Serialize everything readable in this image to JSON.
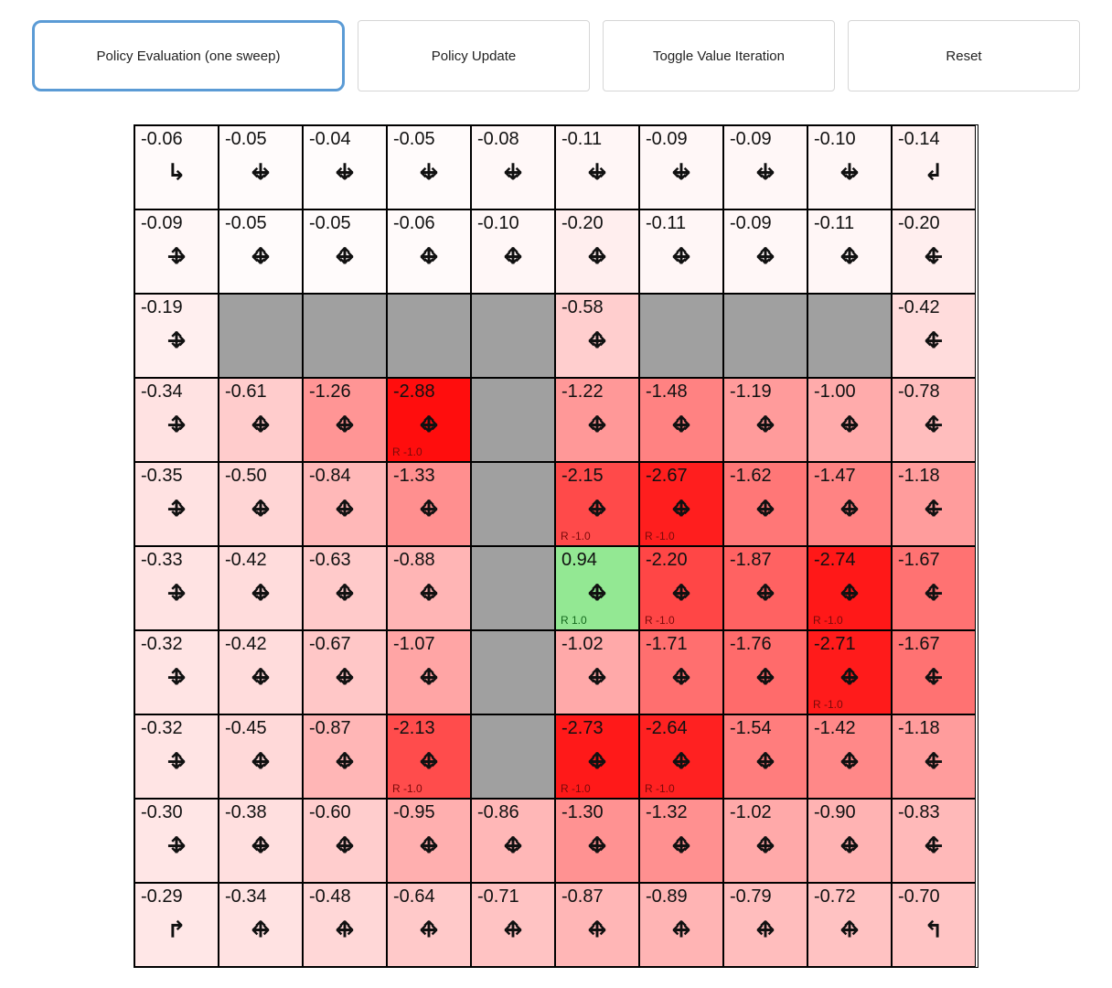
{
  "toolbar": {
    "buttons": [
      {
        "label": "Policy Evaluation (one sweep)",
        "active": true
      },
      {
        "label": "Policy Update",
        "active": false
      },
      {
        "label": "Toggle Value Iteration",
        "active": false
      },
      {
        "label": "Reset",
        "active": false
      }
    ]
  },
  "colors": {
    "accent": "#5b9bd5",
    "wall": "#a0a0a0",
    "cell_border": "#000000",
    "negative_rgb": "255,0,0",
    "positive_rgb": "0,200,0",
    "reward_negative_text": "#7a0a0a",
    "reward_positive_text": "#14691d"
  },
  "arrow_glyphs": {
    "U": "↑",
    "D": "↓",
    "L": "←",
    "R": "→",
    "TDR": "↳",
    "TDL": "↲",
    "TUR": "↱",
    "TUL": "↰"
  },
  "grid": {
    "rows": [
      [
        {
          "value": "-0.06",
          "arrows": [
            "TDR"
          ]
        },
        {
          "value": "-0.05",
          "arrows": [
            "D",
            "L",
            "R"
          ]
        },
        {
          "value": "-0.04",
          "arrows": [
            "D",
            "L",
            "R"
          ]
        },
        {
          "value": "-0.05",
          "arrows": [
            "D",
            "L",
            "R"
          ]
        },
        {
          "value": "-0.08",
          "arrows": [
            "D",
            "L",
            "R"
          ]
        },
        {
          "value": "-0.11",
          "arrows": [
            "D",
            "L",
            "R"
          ]
        },
        {
          "value": "-0.09",
          "arrows": [
            "D",
            "L",
            "R"
          ]
        },
        {
          "value": "-0.09",
          "arrows": [
            "D",
            "L",
            "R"
          ]
        },
        {
          "value": "-0.10",
          "arrows": [
            "D",
            "L",
            "R"
          ]
        },
        {
          "value": "-0.14",
          "arrows": [
            "TDL"
          ]
        }
      ],
      [
        {
          "value": "-0.09",
          "arrows": [
            "U",
            "D",
            "R"
          ]
        },
        {
          "value": "-0.05",
          "arrows": [
            "U",
            "D",
            "L",
            "R"
          ]
        },
        {
          "value": "-0.05",
          "arrows": [
            "U",
            "D",
            "L",
            "R"
          ]
        },
        {
          "value": "-0.06",
          "arrows": [
            "U",
            "D",
            "L",
            "R"
          ]
        },
        {
          "value": "-0.10",
          "arrows": [
            "U",
            "D",
            "L",
            "R"
          ]
        },
        {
          "value": "-0.20",
          "arrows": [
            "U",
            "D",
            "L",
            "R"
          ]
        },
        {
          "value": "-0.11",
          "arrows": [
            "U",
            "D",
            "L",
            "R"
          ]
        },
        {
          "value": "-0.09",
          "arrows": [
            "U",
            "D",
            "L",
            "R"
          ]
        },
        {
          "value": "-0.11",
          "arrows": [
            "U",
            "D",
            "L",
            "R"
          ]
        },
        {
          "value": "-0.20",
          "arrows": [
            "U",
            "D",
            "L"
          ]
        }
      ],
      [
        {
          "value": "-0.19",
          "arrows": [
            "U",
            "D",
            "R"
          ]
        },
        {
          "wall": true
        },
        {
          "wall": true
        },
        {
          "wall": true
        },
        {
          "wall": true
        },
        {
          "value": "-0.58",
          "arrows": [
            "U",
            "D",
            "L",
            "R"
          ]
        },
        {
          "wall": true
        },
        {
          "wall": true
        },
        {
          "wall": true
        },
        {
          "value": "-0.42",
          "arrows": [
            "U",
            "D",
            "L"
          ]
        }
      ],
      [
        {
          "value": "-0.34",
          "arrows": [
            "U",
            "D",
            "R"
          ]
        },
        {
          "value": "-0.61",
          "arrows": [
            "U",
            "D",
            "L",
            "R"
          ]
        },
        {
          "value": "-1.26",
          "arrows": [
            "U",
            "D",
            "L",
            "R"
          ]
        },
        {
          "value": "-2.88",
          "arrows": [
            "U",
            "D",
            "L",
            "R"
          ],
          "reward_label": "R -1.0"
        },
        {
          "wall": true
        },
        {
          "value": "-1.22",
          "arrows": [
            "U",
            "D",
            "L",
            "R"
          ]
        },
        {
          "value": "-1.48",
          "arrows": [
            "U",
            "D",
            "L",
            "R"
          ]
        },
        {
          "value": "-1.19",
          "arrows": [
            "U",
            "D",
            "L",
            "R"
          ]
        },
        {
          "value": "-1.00",
          "arrows": [
            "U",
            "D",
            "L",
            "R"
          ]
        },
        {
          "value": "-0.78",
          "arrows": [
            "U",
            "D",
            "L"
          ]
        }
      ],
      [
        {
          "value": "-0.35",
          "arrows": [
            "U",
            "D",
            "R"
          ]
        },
        {
          "value": "-0.50",
          "arrows": [
            "U",
            "D",
            "L",
            "R"
          ]
        },
        {
          "value": "-0.84",
          "arrows": [
            "U",
            "D",
            "L",
            "R"
          ]
        },
        {
          "value": "-1.33",
          "arrows": [
            "U",
            "D",
            "L",
            "R"
          ]
        },
        {
          "wall": true
        },
        {
          "value": "-2.15",
          "arrows": [
            "U",
            "D",
            "L",
            "R"
          ],
          "reward_label": "R -1.0"
        },
        {
          "value": "-2.67",
          "arrows": [
            "U",
            "D",
            "L",
            "R"
          ],
          "reward_label": "R -1.0"
        },
        {
          "value": "-1.62",
          "arrows": [
            "U",
            "D",
            "L",
            "R"
          ]
        },
        {
          "value": "-1.47",
          "arrows": [
            "U",
            "D",
            "L",
            "R"
          ]
        },
        {
          "value": "-1.18",
          "arrows": [
            "U",
            "D",
            "L"
          ]
        }
      ],
      [
        {
          "value": "-0.33",
          "arrows": [
            "U",
            "D",
            "R"
          ]
        },
        {
          "value": "-0.42",
          "arrows": [
            "U",
            "D",
            "L",
            "R"
          ]
        },
        {
          "value": "-0.63",
          "arrows": [
            "U",
            "D",
            "L",
            "R"
          ]
        },
        {
          "value": "-0.88",
          "arrows": [
            "U",
            "D",
            "L",
            "R"
          ]
        },
        {
          "wall": true
        },
        {
          "value": "0.94",
          "arrows": [
            "U",
            "D",
            "L",
            "R"
          ],
          "reward_label": "R 1.0"
        },
        {
          "value": "-2.20",
          "arrows": [
            "U",
            "D",
            "L",
            "R"
          ],
          "reward_label": "R -1.0"
        },
        {
          "value": "-1.87",
          "arrows": [
            "U",
            "D",
            "L",
            "R"
          ]
        },
        {
          "value": "-2.74",
          "arrows": [
            "U",
            "D",
            "L",
            "R"
          ],
          "reward_label": "R -1.0"
        },
        {
          "value": "-1.67",
          "arrows": [
            "U",
            "D",
            "L"
          ]
        }
      ],
      [
        {
          "value": "-0.32",
          "arrows": [
            "U",
            "D",
            "R"
          ]
        },
        {
          "value": "-0.42",
          "arrows": [
            "U",
            "D",
            "L",
            "R"
          ]
        },
        {
          "value": "-0.67",
          "arrows": [
            "U",
            "D",
            "L",
            "R"
          ]
        },
        {
          "value": "-1.07",
          "arrows": [
            "U",
            "D",
            "L",
            "R"
          ]
        },
        {
          "wall": true
        },
        {
          "value": "-1.02",
          "arrows": [
            "U",
            "D",
            "L",
            "R"
          ]
        },
        {
          "value": "-1.71",
          "arrows": [
            "U",
            "D",
            "L",
            "R"
          ]
        },
        {
          "value": "-1.76",
          "arrows": [
            "U",
            "D",
            "L",
            "R"
          ]
        },
        {
          "value": "-2.71",
          "arrows": [
            "U",
            "D",
            "L",
            "R"
          ],
          "reward_label": "R -1.0"
        },
        {
          "value": "-1.67",
          "arrows": [
            "U",
            "D",
            "L"
          ]
        }
      ],
      [
        {
          "value": "-0.32",
          "arrows": [
            "U",
            "D",
            "R"
          ]
        },
        {
          "value": "-0.45",
          "arrows": [
            "U",
            "D",
            "L",
            "R"
          ]
        },
        {
          "value": "-0.87",
          "arrows": [
            "U",
            "D",
            "L",
            "R"
          ]
        },
        {
          "value": "-2.13",
          "arrows": [
            "U",
            "D",
            "L",
            "R"
          ],
          "reward_label": "R -1.0"
        },
        {
          "wall": true
        },
        {
          "value": "-2.73",
          "arrows": [
            "U",
            "D",
            "L",
            "R"
          ],
          "reward_label": "R -1.0"
        },
        {
          "value": "-2.64",
          "arrows": [
            "U",
            "D",
            "L",
            "R"
          ],
          "reward_label": "R -1.0"
        },
        {
          "value": "-1.54",
          "arrows": [
            "U",
            "D",
            "L",
            "R"
          ]
        },
        {
          "value": "-1.42",
          "arrows": [
            "U",
            "D",
            "L",
            "R"
          ]
        },
        {
          "value": "-1.18",
          "arrows": [
            "U",
            "D",
            "L"
          ]
        }
      ],
      [
        {
          "value": "-0.30",
          "arrows": [
            "U",
            "D",
            "R"
          ]
        },
        {
          "value": "-0.38",
          "arrows": [
            "U",
            "D",
            "L",
            "R"
          ]
        },
        {
          "value": "-0.60",
          "arrows": [
            "U",
            "D",
            "L",
            "R"
          ]
        },
        {
          "value": "-0.95",
          "arrows": [
            "U",
            "D",
            "L",
            "R"
          ]
        },
        {
          "value": "-0.86",
          "arrows": [
            "U",
            "D",
            "L",
            "R"
          ]
        },
        {
          "value": "-1.30",
          "arrows": [
            "U",
            "D",
            "L",
            "R"
          ]
        },
        {
          "value": "-1.32",
          "arrows": [
            "U",
            "D",
            "L",
            "R"
          ]
        },
        {
          "value": "-1.02",
          "arrows": [
            "U",
            "D",
            "L",
            "R"
          ]
        },
        {
          "value": "-0.90",
          "arrows": [
            "U",
            "D",
            "L",
            "R"
          ]
        },
        {
          "value": "-0.83",
          "arrows": [
            "U",
            "D",
            "L"
          ]
        }
      ],
      [
        {
          "value": "-0.29",
          "arrows": [
            "TUR"
          ]
        },
        {
          "value": "-0.34",
          "arrows": [
            "U",
            "L",
            "R"
          ]
        },
        {
          "value": "-0.48",
          "arrows": [
            "U",
            "L",
            "R"
          ]
        },
        {
          "value": "-0.64",
          "arrows": [
            "U",
            "L",
            "R"
          ]
        },
        {
          "value": "-0.71",
          "arrows": [
            "U",
            "L",
            "R"
          ]
        },
        {
          "value": "-0.87",
          "arrows": [
            "U",
            "L",
            "R"
          ]
        },
        {
          "value": "-0.89",
          "arrows": [
            "U",
            "L",
            "R"
          ]
        },
        {
          "value": "-0.79",
          "arrows": [
            "U",
            "L",
            "R"
          ]
        },
        {
          "value": "-0.72",
          "arrows": [
            "U",
            "L",
            "R"
          ]
        },
        {
          "value": "-0.70",
          "arrows": [
            "TUL"
          ]
        }
      ]
    ]
  }
}
